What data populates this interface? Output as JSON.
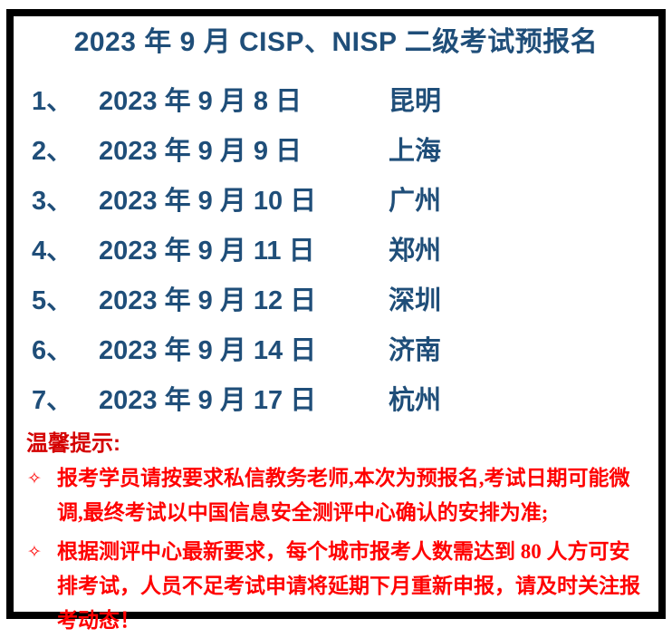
{
  "colors": {
    "title_blue": "#1F4E79",
    "tip_heading_red": "#D40000",
    "tip_body_red": "#FF0000",
    "frame_black": "#000000"
  },
  "title": "2023 年 9 月 CISP、NISP 二级考试预报名",
  "schedule": {
    "rows": [
      {
        "num": "1、",
        "date": "2023 年 9 月 8 日",
        "city": "昆明"
      },
      {
        "num": "2、",
        "date": "2023 年 9 月 9 日",
        "city": "上海"
      },
      {
        "num": "3、",
        "date": "2023 年 9 月 10 日",
        "city": "广州"
      },
      {
        "num": "4、",
        "date": "2023 年 9 月 11 日",
        "city": "郑州"
      },
      {
        "num": "5、",
        "date": "2023 年 9 月 12 日",
        "city": "深圳"
      },
      {
        "num": "6、",
        "date": "2023 年 9 月 14 日",
        "city": "济南"
      },
      {
        "num": "7、",
        "date": "2023 年 9 月 17 日",
        "city": "杭州"
      }
    ]
  },
  "tips": {
    "heading": "温馨提示:",
    "bullet_icon": "✧",
    "items": [
      "报考学员请按要求私信教务老师,本次为预报名,考试日期可能微调,最终考试以中国信息安全测评中心确认的安排为准;",
      "根据测评中心最新要求，每个城市报考人数需达到 80 人方可安排考试，人员不足考试申请将延期下月重新申报，请及时关注报考动态！"
    ]
  }
}
